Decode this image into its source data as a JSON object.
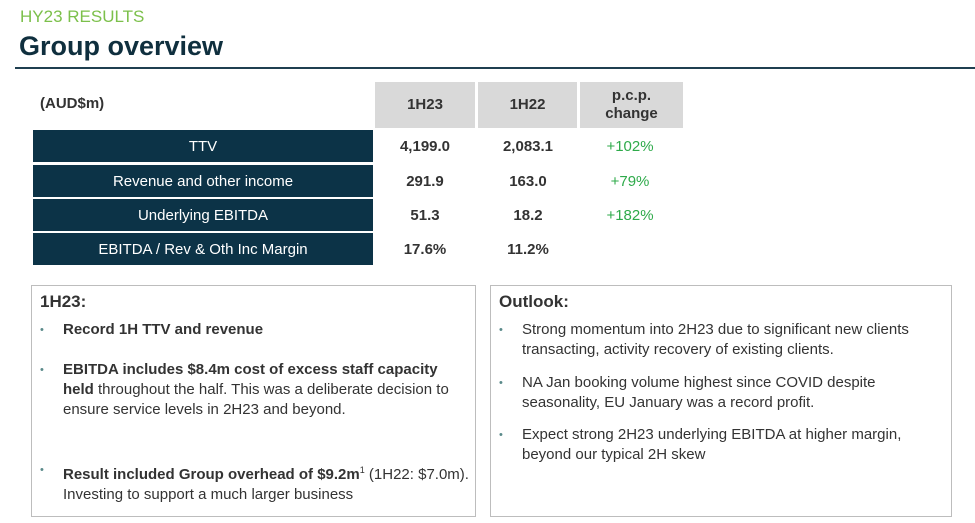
{
  "header": {
    "kicker": "HY23 RESULTS",
    "title": "Group overview"
  },
  "table": {
    "unit": "(AUD$m)",
    "columns": [
      "1H23",
      "1H22",
      "p.c.p. change"
    ],
    "rows": [
      {
        "label": "TTV",
        "h23": "4,199.0",
        "h22": "2,083.1",
        "change": "+102%"
      },
      {
        "label": "Revenue and other income",
        "h23": "291.9",
        "h22": "163.0",
        "change": "+79%"
      },
      {
        "label": "Underlying EBITDA",
        "h23": "51.3",
        "h22": "18.2",
        "change": "+182%"
      },
      {
        "label": "EBITDA / Rev & Oth Inc Margin",
        "h23": "17.6%",
        "h22": "11.2%",
        "change": ""
      }
    ],
    "colors": {
      "row_bg": "#0c3347",
      "header_bg": "#d9d9d9",
      "positive": "#2eaa4a"
    }
  },
  "left_box": {
    "title": "1H23:",
    "bullets": [
      {
        "bold": "Record 1H TTV and revenue",
        "sup": "",
        "rest": ""
      },
      {
        "bold": "EBITDA includes $8.4m cost of excess staff capacity held",
        "sup": "",
        "rest": " throughout the half. This was a deliberate decision to ensure service levels in 2H23 and beyond."
      },
      {
        "bold": "Result included Group overhead of $9.2m",
        "sup": "1",
        "rest": " (1H22: $7.0m). Investing to support a much larger business"
      }
    ]
  },
  "right_box": {
    "title": "Outlook:",
    "bullets": [
      "Strong momentum into 2H23 due to significant new clients transacting, activity recovery of existing clients.",
      "NA Jan booking volume highest since COVID despite seasonality,  EU January was a record profit.",
      "Expect strong 2H23 underlying EBITDA at higher margin, beyond our typical 2H skew"
    ]
  },
  "brand_colors": {
    "green": "#7cc04b",
    "navy": "#0f2f3e"
  }
}
